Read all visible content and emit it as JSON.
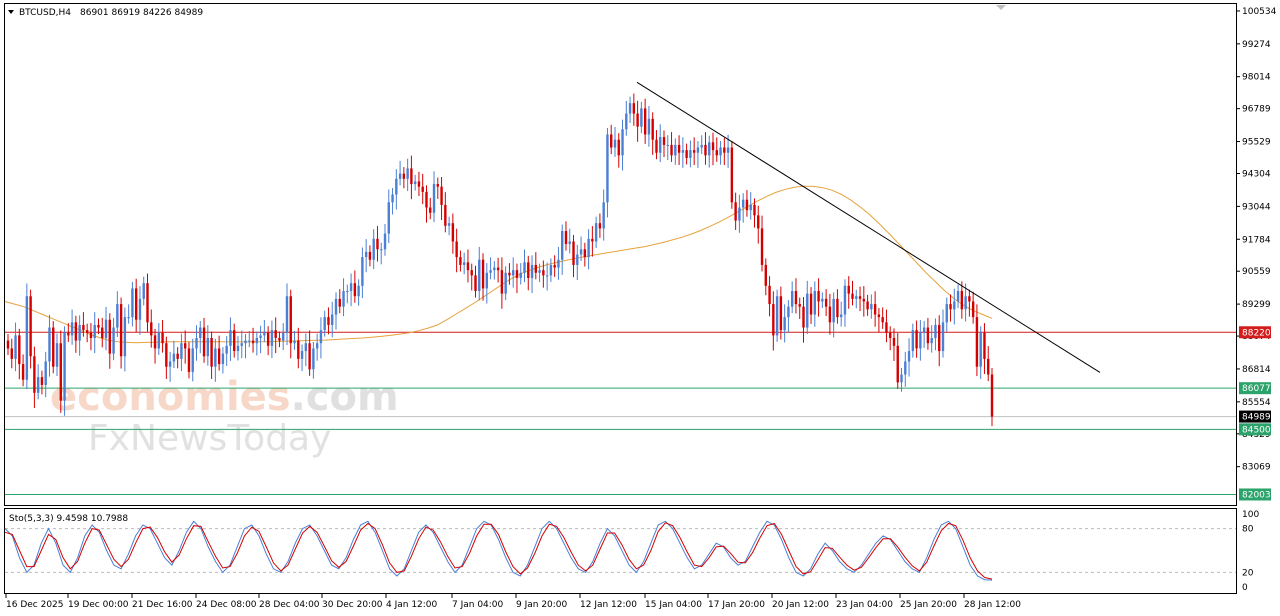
{
  "header": {
    "symbol": "BTCUSD,H4",
    "ohlc": "86901 86919 84226 84989",
    "indicator": "Sto(5,3,3) 9.4598 10.7988"
  },
  "watermark": {
    "brand_part1": "economies",
    "brand_part2": ".com",
    "sub_brand": "FxNewsToday"
  },
  "colors": {
    "bull": "#4a7fd4",
    "bear": "#d40000",
    "ma": "#e6a23c",
    "resistance": "#d41c1c",
    "support": "#2ca36b",
    "trendline": "#000000",
    "stoch_main": "#4a7fd4",
    "stoch_signal": "#d40000"
  },
  "chart_data": {
    "type": "line",
    "ylim": [
      81600,
      100800
    ],
    "y_ticks": [
      "100534",
      "99274",
      "98014",
      "96789",
      "95529",
      "94304",
      "93044",
      "91784",
      "90559",
      "89299",
      "88074",
      "86814",
      "85554",
      "84329",
      "83069"
    ],
    "x_ticks": [
      "16 Dec 2025",
      "19 Dec 00:00",
      "21 Dec 16:00",
      "24 Dec 08:00",
      "28 Dec 04:00",
      "30 Dec 20:00",
      "4 Jan 12:00",
      "7 Jan 04:00",
      "9 Jan 20:00",
      "12 Jan 12:00",
      "15 Jan 04:00",
      "17 Jan 20:00",
      "20 Jan 12:00",
      "23 Jan 04:00",
      "25 Jan 20:00",
      "28 Jan 12:00"
    ],
    "price_series_close": [
      87600,
      87200,
      88100,
      87000,
      86400,
      89600,
      87300,
      85900,
      86500,
      86200,
      87100,
      88400,
      86900,
      87800,
      85600,
      88200,
      88100,
      88600,
      87900,
      88500,
      88300,
      88200,
      88000,
      88500,
      88400,
      88000,
      88700,
      87400,
      88400,
      89300,
      87300,
      88800,
      88800,
      89900,
      88700,
      89500,
      90100,
      88600,
      88100,
      87600,
      88200,
      87800,
      86900,
      87100,
      87400,
      87200,
      87800,
      87600,
      86700,
      87600,
      88000,
      88400,
      87300,
      88000,
      86900,
      87600,
      87000,
      87400,
      87700,
      88300,
      87500,
      87700,
      87800,
      87900,
      87900,
      87800,
      88000,
      88100,
      88200,
      87700,
      88300,
      88000,
      87900,
      88200,
      89600,
      87800,
      87900,
      87200,
      87500,
      87800,
      86800,
      87600,
      87800,
      88300,
      88800,
      88500,
      88900,
      89500,
      89200,
      89800,
      89800,
      90100,
      89600,
      90000,
      91100,
      91300,
      91000,
      91800,
      91400,
      91400,
      92000,
      93200,
      93500,
      94100,
      94300,
      94100,
      94500,
      93900,
      94000,
      93800,
      93600,
      93000,
      92800,
      93900,
      93800,
      93100,
      92300,
      92400,
      91700,
      91100,
      90800,
      90900,
      90600,
      90400,
      89800,
      91000,
      89900,
      90500,
      90600,
      90700,
      90600,
      89700,
      90500,
      90400,
      90600,
      90300,
      90500,
      90900,
      90300,
      90800,
      90500,
      90600,
      90400,
      90400,
      90800,
      90700,
      91000,
      92100,
      91600,
      91700,
      90800,
      91200,
      91400,
      91100,
      91800,
      91700,
      92400,
      92200,
      93200,
      95800,
      95300,
      95600,
      95000,
      96000,
      96600,
      97000,
      96600,
      96100,
      96800,
      95800,
      96400,
      95600,
      95100,
      95700,
      95400,
      95400,
      95000,
      95400,
      95100,
      95200,
      94900,
      95200,
      95100,
      95300,
      95400,
      95000,
      95500,
      95200,
      95000,
      95300,
      95100,
      95300,
      93200,
      92500,
      93000,
      93300,
      92900,
      93100,
      92700,
      92200,
      90800,
      90000,
      89300,
      88100,
      89600,
      88300,
      88800,
      89200,
      89800,
      89300,
      89200,
      88400,
      89700,
      88900,
      89800,
      89400,
      89500,
      89200,
      88600,
      89500,
      88800,
      88900,
      90000,
      89700,
      89500,
      89600,
      89500,
      89400,
      89100,
      89300,
      88900,
      88800,
      88600,
      88200,
      88000,
      87700,
      86300,
      86600,
      87100,
      87500,
      88300,
      87600,
      88200,
      88400,
      87800,
      88000,
      88500,
      87500,
      88600,
      89300,
      89100,
      89400,
      89800,
      89100,
      89600,
      89400,
      88800,
      86900,
      88200,
      87200,
      86600,
      84989
    ],
    "ma_series": [
      89400,
      89300,
      89200,
      89050,
      88900,
      88750,
      88600,
      88450,
      88300,
      88150,
      88020,
      87920,
      87860,
      87830,
      87820,
      87830,
      87840,
      87850,
      87860,
      87860,
      87860,
      87860,
      87860,
      87860,
      87850,
      87850,
      87850,
      87860,
      87860,
      87870,
      87880,
      87890,
      87900,
      87910,
      87920,
      87940,
      87960,
      87980,
      88000,
      88030,
      88060,
      88100,
      88150,
      88200,
      88280,
      88380,
      88500,
      88700,
      88920,
      89140,
      89360,
      89600,
      89840,
      90080,
      90300,
      90480,
      90620,
      90740,
      90840,
      90920,
      91000,
      91070,
      91140,
      91200,
      91260,
      91320,
      91380,
      91440,
      91500,
      91580,
      91660,
      91760,
      91860,
      91980,
      92120,
      92280,
      92450,
      92640,
      92840,
      93040,
      93240,
      93420,
      93580,
      93700,
      93780,
      93820,
      93810,
      93760,
      93660,
      93500,
      93280,
      93020,
      92720,
      92380,
      92020,
      91640,
      91260,
      90880,
      90500,
      90150,
      89800,
      89500,
      89250,
      89050,
      88900,
      88750
    ],
    "trendline": {
      "x_start_label": "12 Jan 12:00",
      "price_start": 97800,
      "price_end": 86680
    },
    "horizontal_levels": [
      {
        "label": "88220",
        "value": 88220,
        "kind": "resistance"
      },
      {
        "label": "86077",
        "value": 86077,
        "kind": "support"
      },
      {
        "label": "84989",
        "value": 84989,
        "kind": "current"
      },
      {
        "label": "84500",
        "value": 84500,
        "kind": "support"
      },
      {
        "label": "82003",
        "value": 82003,
        "kind": "support"
      }
    ],
    "stochastic": {
      "levels": [
        "100",
        "80",
        "20",
        "0"
      ],
      "main": [
        80,
        70,
        40,
        20,
        30,
        60,
        80,
        60,
        30,
        20,
        40,
        70,
        85,
        75,
        50,
        30,
        25,
        45,
        70,
        85,
        80,
        60,
        40,
        30,
        50,
        75,
        90,
        80,
        55,
        35,
        20,
        30,
        55,
        80,
        85,
        70,
        45,
        25,
        20,
        35,
        60,
        80,
        85,
        70,
        50,
        30,
        25,
        40,
        65,
        85,
        90,
        75,
        50,
        25,
        15,
        25,
        50,
        75,
        85,
        75,
        55,
        35,
        20,
        30,
        55,
        80,
        90,
        85,
        65,
        40,
        20,
        15,
        30,
        55,
        80,
        90,
        80,
        60,
        40,
        25,
        20,
        35,
        60,
        80,
        70,
        50,
        30,
        20,
        35,
        60,
        85,
        90,
        80,
        60,
        40,
        25,
        30,
        45,
        60,
        55,
        40,
        30,
        35,
        55,
        75,
        90,
        85,
        65,
        40,
        20,
        15,
        25,
        45,
        60,
        50,
        35,
        25,
        20,
        30,
        45,
        60,
        70,
        65,
        50,
        35,
        25,
        20,
        40,
        65,
        85,
        90,
        80,
        55,
        30,
        15,
        10,
        9.46
      ],
      "signal": [
        75,
        72,
        50,
        28,
        28,
        50,
        72,
        65,
        40,
        25,
        35,
        60,
        80,
        78,
        58,
        38,
        28,
        38,
        60,
        80,
        82,
        68,
        48,
        34,
        44,
        66,
        84,
        83,
        62,
        42,
        26,
        28,
        46,
        70,
        82,
        76,
        55,
        33,
        22,
        30,
        52,
        74,
        83,
        75,
        56,
        36,
        27,
        35,
        56,
        78,
        87,
        80,
        58,
        33,
        20,
        22,
        42,
        66,
        82,
        78,
        62,
        42,
        26,
        28,
        46,
        70,
        86,
        86,
        72,
        48,
        28,
        18,
        26,
        46,
        70,
        86,
        83,
        68,
        48,
        30,
        22,
        30,
        52,
        74,
        74,
        58,
        38,
        25,
        30,
        50,
        76,
        88,
        84,
        68,
        48,
        30,
        28,
        40,
        55,
        56,
        46,
        34,
        33,
        47,
        67,
        84,
        87,
        72,
        50,
        28,
        18,
        21,
        37,
        54,
        53,
        41,
        30,
        23,
        27,
        40,
        54,
        66,
        66,
        55,
        41,
        29,
        22,
        34,
        56,
        77,
        87,
        84,
        64,
        40,
        22,
        13,
        10.8
      ]
    }
  }
}
